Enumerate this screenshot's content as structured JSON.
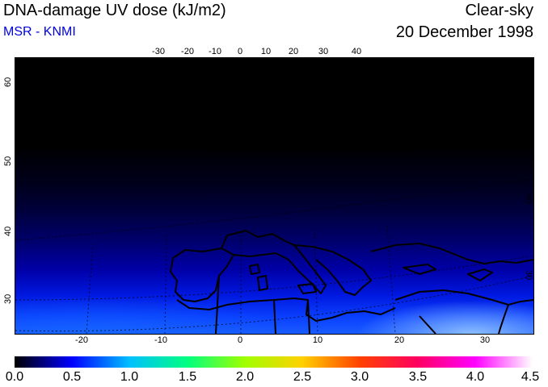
{
  "header": {
    "title": "DNA-damage UV dose (kJ/m2)",
    "subtitle": "MSR - KNMI",
    "sky": "Clear-sky",
    "date": "20 December 1998"
  },
  "map": {
    "top_lon_ticks": [
      "-30",
      "-20",
      "-10",
      "0",
      "10",
      "20",
      "30",
      "40"
    ],
    "bottom_lon_ticks": [
      "-20",
      "-10",
      "0",
      "10",
      "20",
      "30"
    ],
    "left_lat_ticks": [
      "60",
      "50",
      "40",
      "30"
    ],
    "right_lat_ticks": [
      "50",
      "40",
      "30"
    ]
  },
  "colorbar": {
    "labels": [
      "0.0",
      "0.5",
      "1.0",
      "1.5",
      "2.0",
      "2.5",
      "3.0",
      "3.5",
      "4.0",
      "4.5"
    ],
    "colors": [
      "#000000",
      "#0000ff",
      "#00c0ff",
      "#00ff80",
      "#a0ff00",
      "#ffd000",
      "#ff4000",
      "#ff0060",
      "#ff00ff",
      "#ffffff"
    ]
  }
}
